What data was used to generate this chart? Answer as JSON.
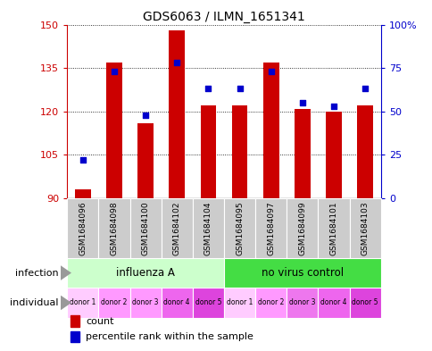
{
  "title": "GDS6063 / ILMN_1651341",
  "samples": [
    "GSM1684096",
    "GSM1684098",
    "GSM1684100",
    "GSM1684102",
    "GSM1684104",
    "GSM1684095",
    "GSM1684097",
    "GSM1684099",
    "GSM1684101",
    "GSM1684103"
  ],
  "counts": [
    93,
    137,
    116,
    148,
    122,
    122,
    137,
    121,
    120,
    122
  ],
  "percentiles": [
    22,
    73,
    48,
    78,
    63,
    63,
    73,
    55,
    53,
    63
  ],
  "ylim_left": [
    90,
    150
  ],
  "ylim_right": [
    0,
    100
  ],
  "yticks_left": [
    90,
    105,
    120,
    135,
    150
  ],
  "yticks_right": [
    0,
    25,
    50,
    75,
    100
  ],
  "infection_groups": [
    {
      "label": "influenza A",
      "start": 0,
      "end": 5,
      "color": "#ccffcc"
    },
    {
      "label": "no virus control",
      "start": 5,
      "end": 10,
      "color": "#44dd44"
    }
  ],
  "individual_labels": [
    "donor 1",
    "donor 2",
    "donor 3",
    "donor 4",
    "donor 5",
    "donor 1",
    "donor 2",
    "donor 3",
    "donor 4",
    "donor 5"
  ],
  "individual_colors": [
    "#ffccff",
    "#ff99ff",
    "#ff99ff",
    "#ee66ee",
    "#dd44dd",
    "#ffccff",
    "#ff99ff",
    "#ee77ee",
    "#ee66ee",
    "#dd44dd"
  ],
  "bar_color": "#cc0000",
  "dot_color": "#0000cc",
  "background_color": "#ffffff",
  "axis_color_left": "#cc0000",
  "axis_color_right": "#0000cc",
  "grid_color": "#000000",
  "sample_bg_color": "#cccccc",
  "legend_count_color": "#cc0000",
  "legend_pct_color": "#0000cc",
  "arrow_color": "#888888",
  "label_color": "#000000"
}
